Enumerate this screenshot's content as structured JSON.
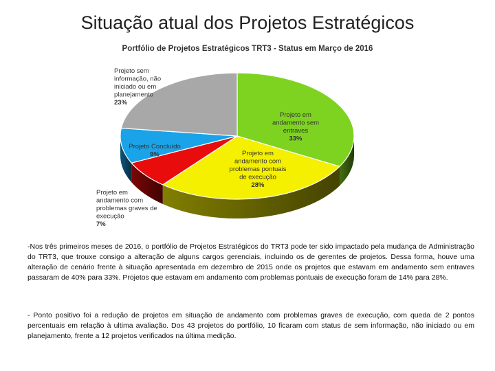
{
  "slide": {
    "title": "Situação atual dos Projetos Estratégicos"
  },
  "chart_data": {
    "type": "pie",
    "title": "Portfólio de Projetos Estratégicos TRT3 - Status em Março de 2016",
    "legend": "none",
    "slices": [
      {
        "label_lines": [
          "Projeto em",
          "andamento sem",
          "entraves"
        ],
        "value": 33,
        "value_label": "33%",
        "color": "#7ed321"
      },
      {
        "label_lines": [
          "Projeto em",
          "andamento com",
          "problemas pontuais",
          "de execução"
        ],
        "value": 28,
        "value_label": "28%",
        "color": "#f5f000"
      },
      {
        "label_lines": [
          "Projeto em",
          "andamento com",
          "problemas graves de",
          "execução"
        ],
        "value": 7,
        "value_label": "7%",
        "color": "#e80c0c"
      },
      {
        "label_lines": [
          "Projeto Concluído"
        ],
        "value": 9,
        "value_label": "9%",
        "color": "#1aa3e8"
      },
      {
        "label_lines": [
          "Projeto sem",
          "informação, não",
          "iniciado ou em",
          "planejamento"
        ],
        "value": 23,
        "value_label": "23%",
        "color": "#a8a8a8"
      }
    ]
  },
  "text": {
    "paragraph_1": "-Nos três primeiros meses de 2016, o portfólio de Projetos Estratégicos do TRT3 pode ter sido impactado pela mudança de Administração do TRT3, que trouxe consigo a alteração de alguns cargos gerenciais, incluindo os de gerentes de projetos. Dessa forma, houve uma alteração de cenário frente à situação apresentada em dezembro de 2015 onde os projetos que estavam em andamento sem entraves passaram de 40% para 33%. Projetos que estavam em andamento com problemas pontuais de execução foram de 14% para 28%.",
    "paragraph_2": "- Ponto positivo foi a redução de projetos em situação de andamento com problemas graves de execução, com queda de 2 pontos percentuais em relação à ultima avaliação. Dos 43 projetos do portfólio, 10 ficaram com status de sem informação, não iniciado ou em planejamento, frente a 12 projetos verificados na última medição."
  }
}
